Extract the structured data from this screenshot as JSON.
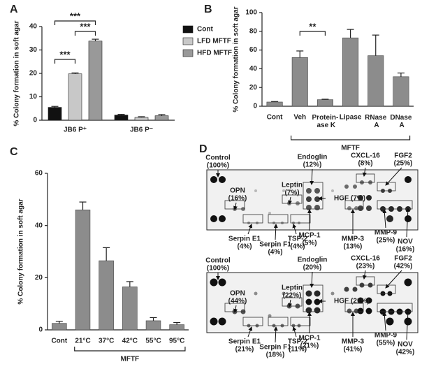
{
  "chart_data": [
    {
      "type": "bar",
      "panel": "A",
      "y_label": "% Colony formation in soft agar",
      "categories": [
        "JB6 P⁺",
        "JB6 P⁻"
      ],
      "series": [
        {
          "name": "Cont",
          "color": "#111111",
          "values": [
            5.5,
            2.2
          ],
          "errors": [
            0.4,
            0.3
          ]
        },
        {
          "name": "LFD MFTF",
          "color": "#c8c8c8",
          "values": [
            19.8,
            1.2
          ],
          "errors": [
            0.4,
            0.3
          ]
        },
        {
          "name": "HFD MFTF",
          "color": "#999999",
          "values": [
            33.8,
            1.9
          ],
          "errors": [
            0.8,
            0.5
          ]
        }
      ],
      "ylim": [
        0,
        40
      ],
      "yticks": [
        0,
        10,
        20,
        30,
        40
      ],
      "annotations": [
        "***",
        "***",
        "***"
      ]
    },
    {
      "type": "bar",
      "panel": "B",
      "y_label": "% Colony formation in soft agar",
      "categories": [
        "Cont",
        "Veh",
        "Protein-\nase K",
        "Lipase",
        "RNase\nA",
        "DNase\nA"
      ],
      "color": "#8c8c8c",
      "values": [
        4.5,
        52,
        7,
        73,
        54,
        31.5
      ],
      "errors": [
        0.5,
        7,
        0.5,
        9,
        22,
        4
      ],
      "ylim": [
        0,
        100
      ],
      "yticks": [
        0,
        20,
        40,
        60,
        80,
        100
      ],
      "group_label": "MFTF",
      "annotations": [
        "**"
      ]
    },
    {
      "type": "bar",
      "panel": "C",
      "y_label": "% Colony formation in soft agar",
      "categories": [
        "Cont",
        "21°C",
        "37°C",
        "42°C",
        "55°C",
        "95°C"
      ],
      "color": "#8c8c8c",
      "values": [
        2.5,
        46,
        26.5,
        16.5,
        3.5,
        2
      ],
      "errors": [
        0.8,
        3,
        5,
        2,
        1.2,
        0.8
      ],
      "ylim": [
        0,
        60
      ],
      "yticks": [
        0,
        20,
        40,
        60
      ],
      "group_label": "MFTF"
    }
  ],
  "panel_d": {
    "panel": "D",
    "blots": [
      {
        "spots": [
          {
            "name": "Control",
            "pct": "(100%)"
          },
          {
            "name": "OPN",
            "pct": "(16%)"
          },
          {
            "name": "Leptin",
            "pct": "(7%)"
          },
          {
            "name": "Endoglin",
            "pct": "(12%)"
          },
          {
            "name": "HGF",
            "pct": "(7%)"
          },
          {
            "name": "CXCL-16",
            "pct": "(8%)"
          },
          {
            "name": "FGF2",
            "pct": "(25%)"
          },
          {
            "name": "MCP-1",
            "pct": "(5%)"
          },
          {
            "name": "MMP-3",
            "pct": "(13%)"
          },
          {
            "name": "MMP-9",
            "pct": "(25%)"
          },
          {
            "name": "NOV",
            "pct": "(16%)"
          },
          {
            "name": "Serpin E1",
            "pct": "(4%)"
          },
          {
            "name": "Serpin F1",
            "pct": "(4%)"
          },
          {
            "name": "TSP-2",
            "pct": "(4%)"
          }
        ]
      },
      {
        "spots": [
          {
            "name": "Control",
            "pct": "(100%)"
          },
          {
            "name": "OPN",
            "pct": "(44%)"
          },
          {
            "name": "Leptin",
            "pct": "(22%)"
          },
          {
            "name": "Endoglin",
            "pct": "(20%)"
          },
          {
            "name": "HGF",
            "pct": "(21%)"
          },
          {
            "name": "CXCL-16",
            "pct": "(23%)"
          },
          {
            "name": "FGF2",
            "pct": "(42%)"
          },
          {
            "name": "MCP-1",
            "pct": "(21%)"
          },
          {
            "name": "MMP-3",
            "pct": "(41%)"
          },
          {
            "name": "MMP-9",
            "pct": "(55%)"
          },
          {
            "name": "NOV",
            "pct": "(42%)"
          },
          {
            "name": "Serpin E1",
            "pct": "(21%)"
          },
          {
            "name": "Serpin F1",
            "pct": "(18%)"
          },
          {
            "name": "TSP-2",
            "pct": "(11%)"
          }
        ]
      }
    ]
  }
}
